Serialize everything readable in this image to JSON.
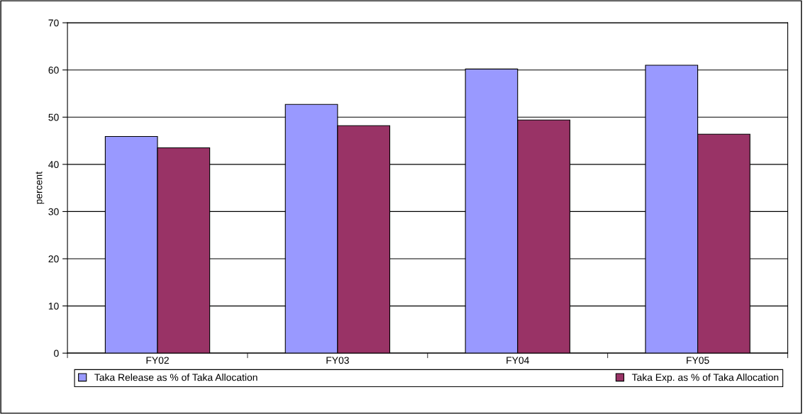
{
  "chart_data": {
    "type": "bar",
    "ylabel": "percent",
    "categories": [
      "FY02",
      "FY03",
      "FY04",
      "FY05"
    ],
    "series": [
      {
        "name": "Taka Release as % of Taka Allocation",
        "color": "#9999ff",
        "values": [
          45.9,
          52.7,
          60.2,
          61.0
        ]
      },
      {
        "name": "Taka Exp. as % of Taka Allocation",
        "color": "#993366",
        "values": [
          43.5,
          48.2,
          49.4,
          46.4
        ]
      }
    ],
    "ylim": [
      0,
      70
    ],
    "yticks": [
      0,
      10,
      20,
      30,
      40,
      50,
      60,
      70
    ],
    "grid": "y",
    "legend": "bottom"
  }
}
